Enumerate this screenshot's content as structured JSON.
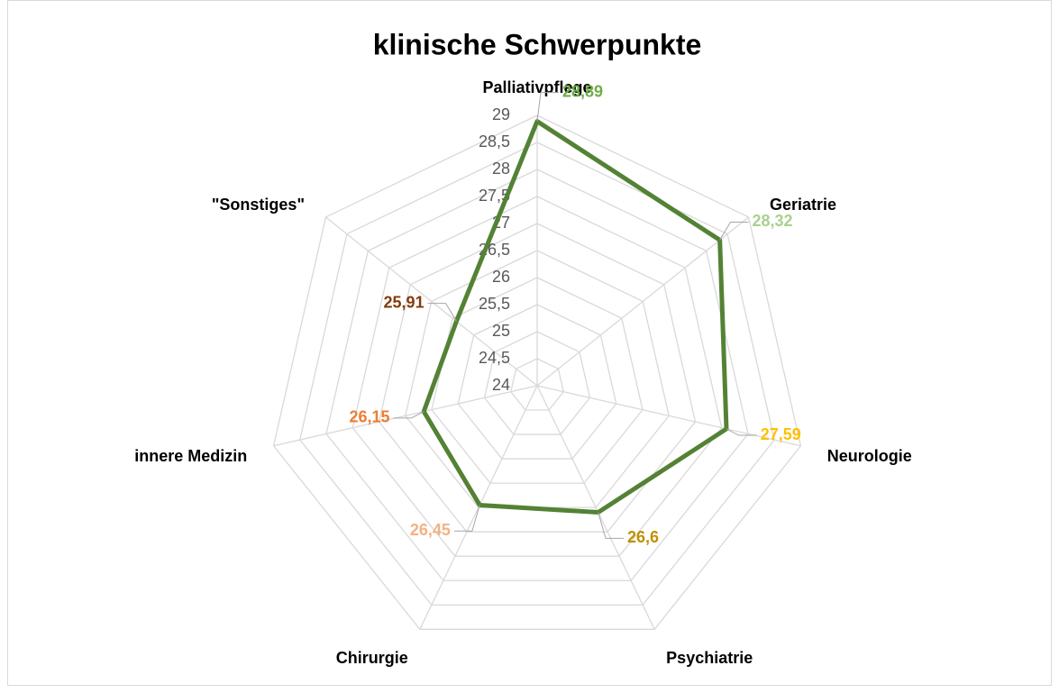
{
  "chart_data": {
    "type": "radar",
    "title": "klinische Schwerpunkte",
    "categories": [
      "Palliativpflege",
      "Geriatrie",
      "Neurologie",
      "Psychiatrie",
      "Chirurgie",
      "innere Medizin",
      "\"Sonstiges\""
    ],
    "values": [
      28.89,
      28.32,
      27.59,
      26.6,
      26.45,
      26.15,
      25.91
    ],
    "value_labels": [
      "28,89",
      "28,32",
      "27,59",
      "26,6",
      "26,45",
      "26,15",
      "25,91"
    ],
    "label_colors": [
      "#70ad47",
      "#a9d18e",
      "#ffc000",
      "#bf9000",
      "#f4b183",
      "#ed7d31",
      "#843c0c"
    ],
    "color": "#548235",
    "ylim": [
      24,
      29
    ],
    "yticks": [
      24,
      {
        "value": 24.5,
        "label": "24,5"
      },
      25,
      {
        "value": 25.5,
        "label": "25,5"
      },
      26,
      {
        "value": 26.5,
        "label": "26,5"
      },
      27,
      {
        "value": 27.5,
        "label": "27,5"
      },
      28,
      {
        "value": 28.5,
        "label": "28,5"
      },
      29
    ],
    "grid": true
  }
}
